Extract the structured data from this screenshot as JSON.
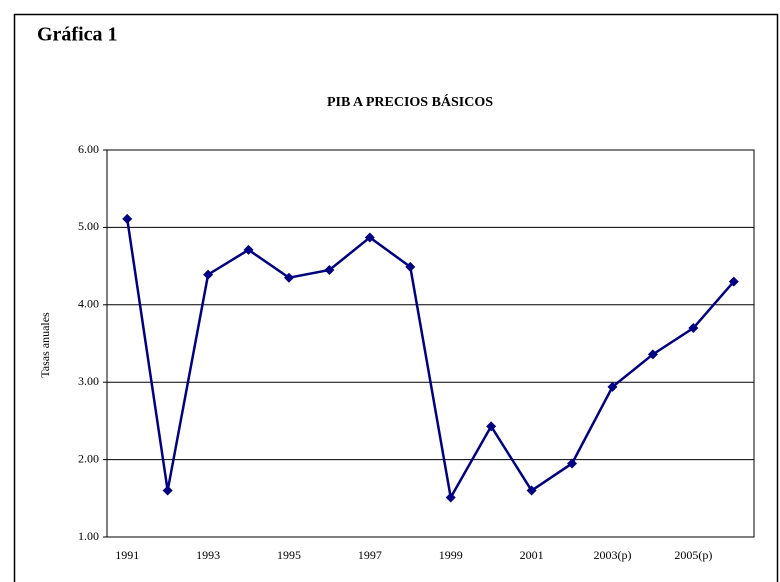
{
  "chart_data": {
    "type": "line",
    "heading": "Gráfica 1",
    "title": "PIB A PRECIOS BÁSICOS",
    "y_label": "Tasas anuales",
    "categories": [
      "1991",
      null,
      "1993",
      null,
      "1995",
      null,
      "1997",
      null,
      "1999",
      null,
      "2001",
      null,
      "2003(p)",
      null,
      "2005(p)",
      null
    ],
    "series": [
      {
        "name": "PIB",
        "color": "#000080",
        "values": [
          5.11,
          1.6,
          4.39,
          4.71,
          4.35,
          4.45,
          4.87,
          4.49,
          1.51,
          2.43,
          1.6,
          1.95,
          2.94,
          3.36,
          3.7,
          4.3
        ]
      }
    ],
    "ylim": [
      1,
      6
    ],
    "yticks": [
      {
        "value": 1,
        "label": "1.00"
      },
      {
        "value": 2,
        "label": "2.00"
      },
      {
        "value": 3,
        "label": "3.00"
      },
      {
        "value": 4,
        "label": "4.00"
      },
      {
        "value": 5,
        "label": "5.00"
      },
      {
        "value": 6,
        "label": "6.00"
      }
    ],
    "grid": true,
    "legend": false
  }
}
